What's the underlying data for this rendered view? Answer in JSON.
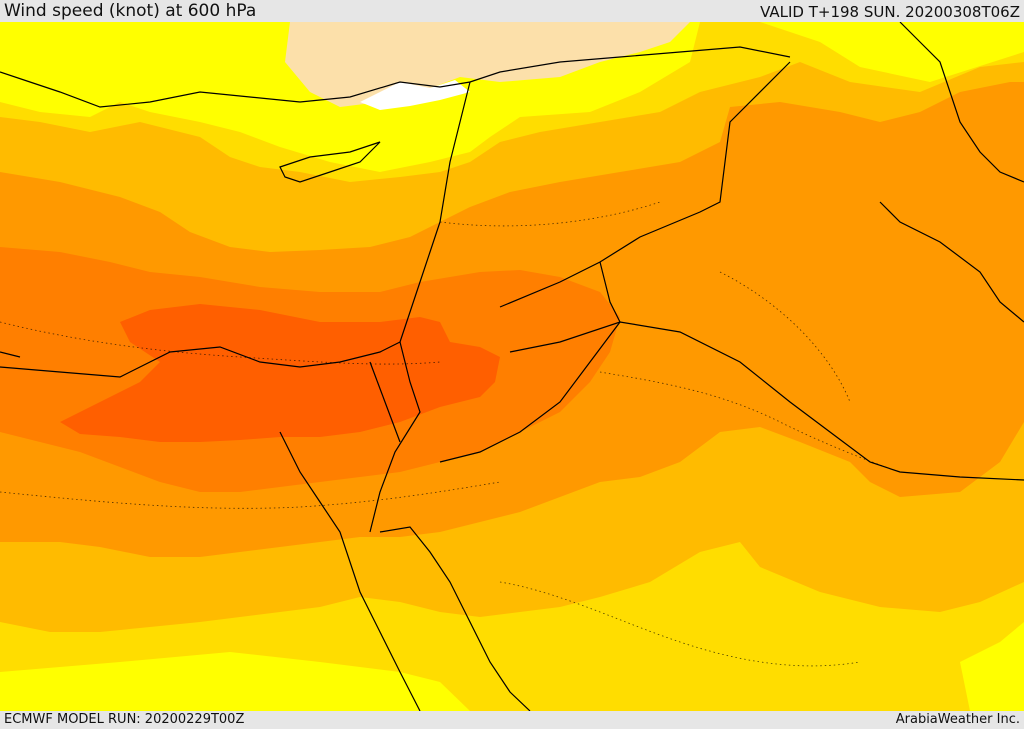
{
  "header": {
    "title": "Wind speed (knot) at 600 hPa",
    "valid": "VALID T+198 SUN. 20200308T06Z"
  },
  "footer": {
    "model_run": "ECMWF MODEL RUN: 20200229T00Z",
    "credit": "ArabiaWeather Inc."
  },
  "map": {
    "fill_colors": {
      "very_light": "#fce0aa",
      "white": "#ffffff",
      "yellow": "#ffff00",
      "gold": "#ffdd00",
      "amber": "#ffbb00",
      "orange": "#ff9900",
      "dark_orange": "#ff7f00",
      "red_orange": "#ff5f00"
    },
    "line_color": "#000000"
  }
}
